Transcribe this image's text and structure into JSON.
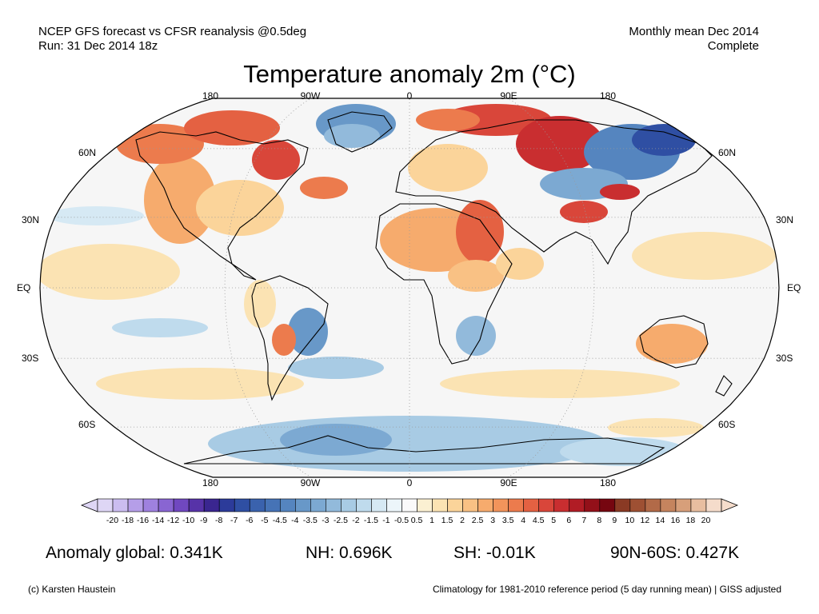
{
  "header": {
    "source_line1": "NCEP GFS forecast vs CFSR reanalysis @0.5deg",
    "source_line2": "Run: 31 Dec 2014 18z",
    "period_line1": "Monthly mean Dec 2014",
    "period_line2": "Complete"
  },
  "title": "Temperature anomaly 2m (°C)",
  "map": {
    "projection": "Robinson",
    "longitude_labels_top": [
      "180",
      "90W",
      "0",
      "90E",
      "180"
    ],
    "longitude_labels_bottom": [
      "180",
      "90W",
      "0",
      "90E",
      "180"
    ],
    "latitude_labels_left": [
      "60N",
      "30N",
      "EQ",
      "30S",
      "60S"
    ],
    "latitude_labels_right": [
      "60N",
      "30N",
      "EQ",
      "30S",
      "60S"
    ],
    "ocean_color": "#f6f6f6",
    "warm_color": "#f09a5c",
    "cold_color": "#6a9bd1"
  },
  "colorbar": {
    "tick_labels": [
      "-20",
      "-18",
      "-16",
      "-14",
      "-12",
      "-10",
      "-9",
      "-8",
      "-7",
      "-6",
      "-5",
      "-4.5",
      "-4",
      "-3.5",
      "-3",
      "-2.5",
      "-2",
      "-1.5",
      "-1",
      "-0.5",
      "0.5",
      "1",
      "1.5",
      "2",
      "2.5",
      "3",
      "3.5",
      "4",
      "4.5",
      "5",
      "6",
      "7",
      "8",
      "9",
      "10",
      "12",
      "14",
      "16",
      "18",
      "20"
    ],
    "colors": [
      "#ded6f5",
      "#cbbdf0",
      "#b59ee8",
      "#9f81df",
      "#8965d2",
      "#7048c0",
      "#5733a8",
      "#3a2690",
      "#2c3b9a",
      "#2f4fa3",
      "#3a62ad",
      "#4673b6",
      "#5585bf",
      "#6898c8",
      "#7ca9d2",
      "#92badb",
      "#a8cbe4",
      "#bfdbed",
      "#d6e9f4",
      "#ecf5fa",
      "#fafafa",
      "#fbf0d2",
      "#fbe3b3",
      "#fbd49a",
      "#f9c184",
      "#f6ab6d",
      "#f2945b",
      "#ec7b4d",
      "#e46142",
      "#d9463a",
      "#c92e30",
      "#b11c25",
      "#931019",
      "#760610",
      "#8a3a24",
      "#9e5033",
      "#b26a48",
      "#c5845e",
      "#d79f7a",
      "#e8bea0",
      "#f5dccb"
    ]
  },
  "stats": {
    "global": "Anomaly global: 0.341K",
    "nh": "NH: 0.696K",
    "sh": "SH: -0.01K",
    "arctic": "90N-60S: 0.427K"
  },
  "footer": {
    "credit": "(c) Karsten Haustein",
    "climatology": "Climatology for 1981-2010 reference period (5 day running mean) | GISS adjusted"
  }
}
